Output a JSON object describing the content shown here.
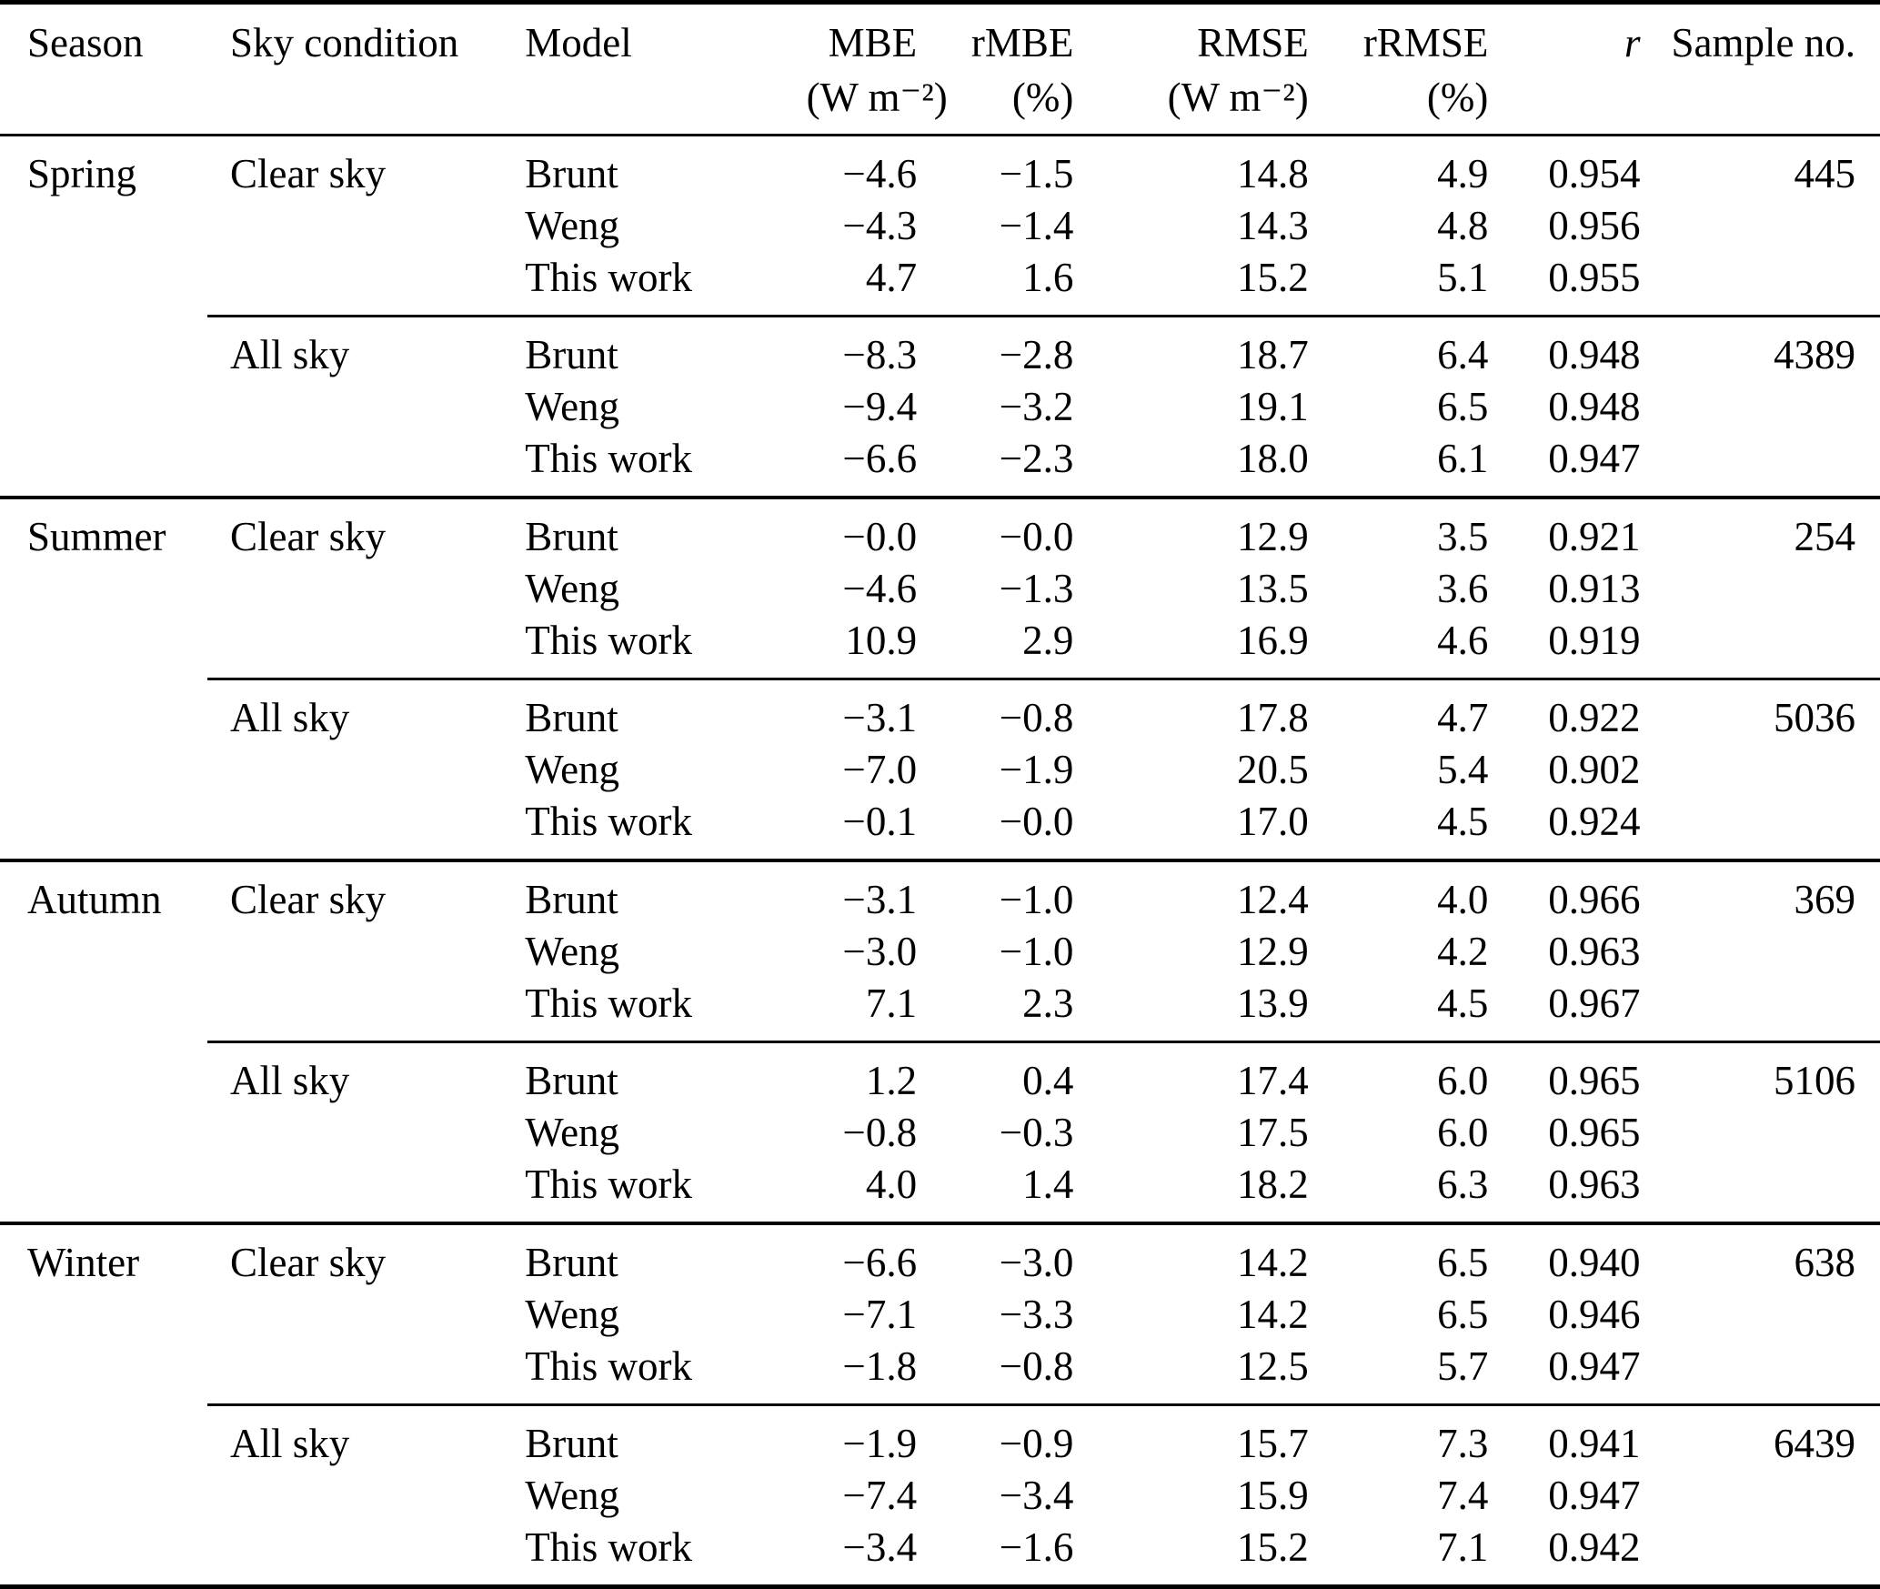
{
  "table": {
    "columns": [
      {
        "key": "season",
        "label": "Season",
        "unit": "",
        "align": "left",
        "italic": false
      },
      {
        "key": "sky",
        "label": "Sky condition",
        "unit": "",
        "align": "left",
        "italic": false
      },
      {
        "key": "model",
        "label": "Model",
        "unit": "",
        "align": "left",
        "italic": false
      },
      {
        "key": "mbe",
        "label": "MBE",
        "unit": "(W m⁻²)",
        "align": "right",
        "italic": false
      },
      {
        "key": "rmbe",
        "label": "rMBE",
        "unit": "(%)",
        "align": "right",
        "italic": false
      },
      {
        "key": "rmse",
        "label": "RMSE",
        "unit": "(W m⁻²)",
        "align": "right",
        "italic": false
      },
      {
        "key": "rrmse",
        "label": "rRMSE",
        "unit": "(%)",
        "align": "right",
        "italic": false
      },
      {
        "key": "r",
        "label": "r",
        "unit": "",
        "align": "right",
        "italic": true
      },
      {
        "key": "sample",
        "label": "Sample no.",
        "unit": "",
        "align": "right",
        "italic": false
      }
    ],
    "seasons": [
      {
        "name": "Spring",
        "groups": [
          {
            "sky": "Clear sky",
            "sample": "445",
            "rows": [
              {
                "model": "Brunt",
                "mbe": "−4.6",
                "rmbe": "−1.5",
                "rmse": "14.8",
                "rrmse": "4.9",
                "r": "0.954"
              },
              {
                "model": "Weng",
                "mbe": "−4.3",
                "rmbe": "−1.4",
                "rmse": "14.3",
                "rrmse": "4.8",
                "r": "0.956"
              },
              {
                "model": "This work",
                "mbe": "4.7",
                "rmbe": "1.6",
                "rmse": "15.2",
                "rrmse": "5.1",
                "r": "0.955"
              }
            ]
          },
          {
            "sky": "All sky",
            "sample": "4389",
            "rows": [
              {
                "model": "Brunt",
                "mbe": "−8.3",
                "rmbe": "−2.8",
                "rmse": "18.7",
                "rrmse": "6.4",
                "r": "0.948"
              },
              {
                "model": "Weng",
                "mbe": "−9.4",
                "rmbe": "−3.2",
                "rmse": "19.1",
                "rrmse": "6.5",
                "r": "0.948"
              },
              {
                "model": "This work",
                "mbe": "−6.6",
                "rmbe": "−2.3",
                "rmse": "18.0",
                "rrmse": "6.1",
                "r": "0.947"
              }
            ]
          }
        ]
      },
      {
        "name": "Summer",
        "groups": [
          {
            "sky": "Clear sky",
            "sample": "254",
            "rows": [
              {
                "model": "Brunt",
                "mbe": "−0.0",
                "rmbe": "−0.0",
                "rmse": "12.9",
                "rrmse": "3.5",
                "r": "0.921"
              },
              {
                "model": "Weng",
                "mbe": "−4.6",
                "rmbe": "−1.3",
                "rmse": "13.5",
                "rrmse": "3.6",
                "r": "0.913"
              },
              {
                "model": "This work",
                "mbe": "10.9",
                "rmbe": "2.9",
                "rmse": "16.9",
                "rrmse": "4.6",
                "r": "0.919"
              }
            ]
          },
          {
            "sky": "All sky",
            "sample": "5036",
            "rows": [
              {
                "model": "Brunt",
                "mbe": "−3.1",
                "rmbe": "−0.8",
                "rmse": "17.8",
                "rrmse": "4.7",
                "r": "0.922"
              },
              {
                "model": "Weng",
                "mbe": "−7.0",
                "rmbe": "−1.9",
                "rmse": "20.5",
                "rrmse": "5.4",
                "r": "0.902"
              },
              {
                "model": "This work",
                "mbe": "−0.1",
                "rmbe": "−0.0",
                "rmse": "17.0",
                "rrmse": "4.5",
                "r": "0.924"
              }
            ]
          }
        ]
      },
      {
        "name": "Autumn",
        "groups": [
          {
            "sky": "Clear sky",
            "sample": "369",
            "rows": [
              {
                "model": "Brunt",
                "mbe": "−3.1",
                "rmbe": "−1.0",
                "rmse": "12.4",
                "rrmse": "4.0",
                "r": "0.966"
              },
              {
                "model": "Weng",
                "mbe": "−3.0",
                "rmbe": "−1.0",
                "rmse": "12.9",
                "rrmse": "4.2",
                "r": "0.963"
              },
              {
                "model": "This work",
                "mbe": "7.1",
                "rmbe": "2.3",
                "rmse": "13.9",
                "rrmse": "4.5",
                "r": "0.967"
              }
            ]
          },
          {
            "sky": "All sky",
            "sample": "5106",
            "rows": [
              {
                "model": "Brunt",
                "mbe": "1.2",
                "rmbe": "0.4",
                "rmse": "17.4",
                "rrmse": "6.0",
                "r": "0.965"
              },
              {
                "model": "Weng",
                "mbe": "−0.8",
                "rmbe": "−0.3",
                "rmse": "17.5",
                "rrmse": "6.0",
                "r": "0.965"
              },
              {
                "model": "This work",
                "mbe": "4.0",
                "rmbe": "1.4",
                "rmse": "18.2",
                "rrmse": "6.3",
                "r": "0.963"
              }
            ]
          }
        ]
      },
      {
        "name": "Winter",
        "groups": [
          {
            "sky": "Clear sky",
            "sample": "638",
            "rows": [
              {
                "model": "Brunt",
                "mbe": "−6.6",
                "rmbe": "−3.0",
                "rmse": "14.2",
                "rrmse": "6.5",
                "r": "0.940"
              },
              {
                "model": "Weng",
                "mbe": "−7.1",
                "rmbe": "−3.3",
                "rmse": "14.2",
                "rrmse": "6.5",
                "r": "0.946"
              },
              {
                "model": "This work",
                "mbe": "−1.8",
                "rmbe": "−0.8",
                "rmse": "12.5",
                "rrmse": "5.7",
                "r": "0.947"
              }
            ]
          },
          {
            "sky": "All sky",
            "sample": "6439",
            "rows": [
              {
                "model": "Brunt",
                "mbe": "−1.9",
                "rmbe": "−0.9",
                "rmse": "15.7",
                "rrmse": "7.3",
                "r": "0.941"
              },
              {
                "model": "Weng",
                "mbe": "−7.4",
                "rmbe": "−3.4",
                "rmse": "15.9",
                "rrmse": "7.4",
                "r": "0.947"
              },
              {
                "model": "This work",
                "mbe": "−3.4",
                "rmbe": "−1.6",
                "rmse": "15.2",
                "rrmse": "7.1",
                "r": "0.942"
              }
            ]
          }
        ]
      }
    ]
  }
}
